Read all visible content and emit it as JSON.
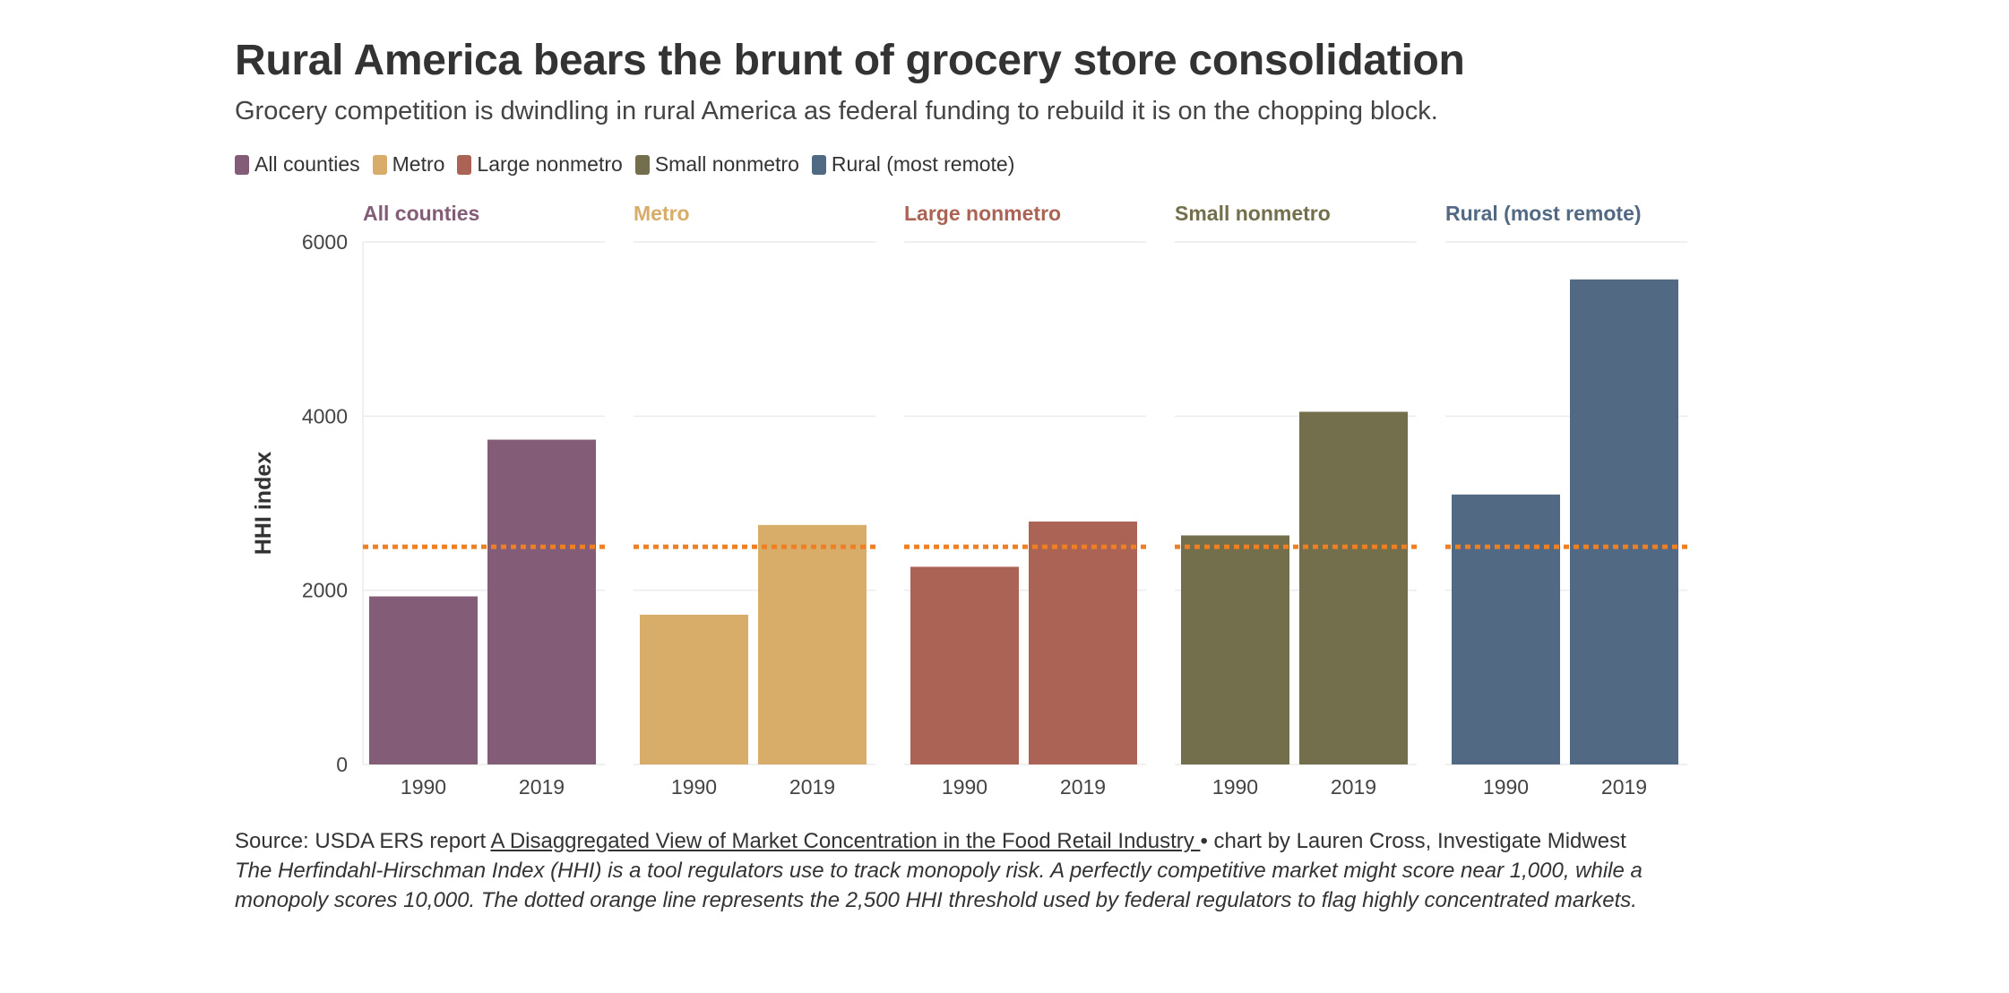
{
  "title": "Rural America bears the brunt of grocery store consolidation",
  "subtitle": "Grocery competition is dwindling in rural America as federal funding to rebuild it is on the chopping block.",
  "legend": [
    {
      "label": "All counties",
      "color": "#835c77"
    },
    {
      "label": "Metro",
      "color": "#d8ac69"
    },
    {
      "label": "Large nonmetro",
      "color": "#ab6355"
    },
    {
      "label": "Small nonmetro",
      "color": "#736e4b"
    },
    {
      "label": "Rural (most remote)",
      "color": "#526983"
    }
  ],
  "footer": {
    "source_prefix": "Source: USDA ERS report ",
    "source_link": "A Disaggregated View of Market Concentration in the Food Retail Industry ",
    "source_suffix": "• chart by Lauren Cross, Investigate Midwest",
    "note": "The Herfindahl-Hirschman Index (HHI) is a tool regulators use to track monopoly risk. A perfectly competitive market might score near 1,000, while a monopoly scores 10,000. The dotted orange line represents the 2,500 HHI threshold used by federal regulators to flag highly concentrated markets."
  },
  "chart_data": {
    "type": "bar",
    "ylabel": "HHI index",
    "ylim": [
      0,
      6000
    ],
    "yticks": [
      0,
      2000,
      4000,
      6000
    ],
    "categories": [
      "1990",
      "2019"
    ],
    "threshold": 2500,
    "threshold_color": "#ee7f22",
    "grid": true,
    "legend_position": "top-left",
    "panels": [
      {
        "name": "All counties",
        "color": "#835c77",
        "values": [
          1930,
          3730
        ]
      },
      {
        "name": "Metro",
        "color": "#d8ac69",
        "values": [
          1720,
          2750
        ]
      },
      {
        "name": "Large nonmetro",
        "color": "#ab6355",
        "values": [
          2270,
          2790
        ]
      },
      {
        "name": "Small nonmetro",
        "color": "#736e4b",
        "values": [
          2630,
          4050
        ]
      },
      {
        "name": "Rural (most remote)",
        "color": "#526983",
        "values": [
          3100,
          5570
        ]
      }
    ]
  }
}
